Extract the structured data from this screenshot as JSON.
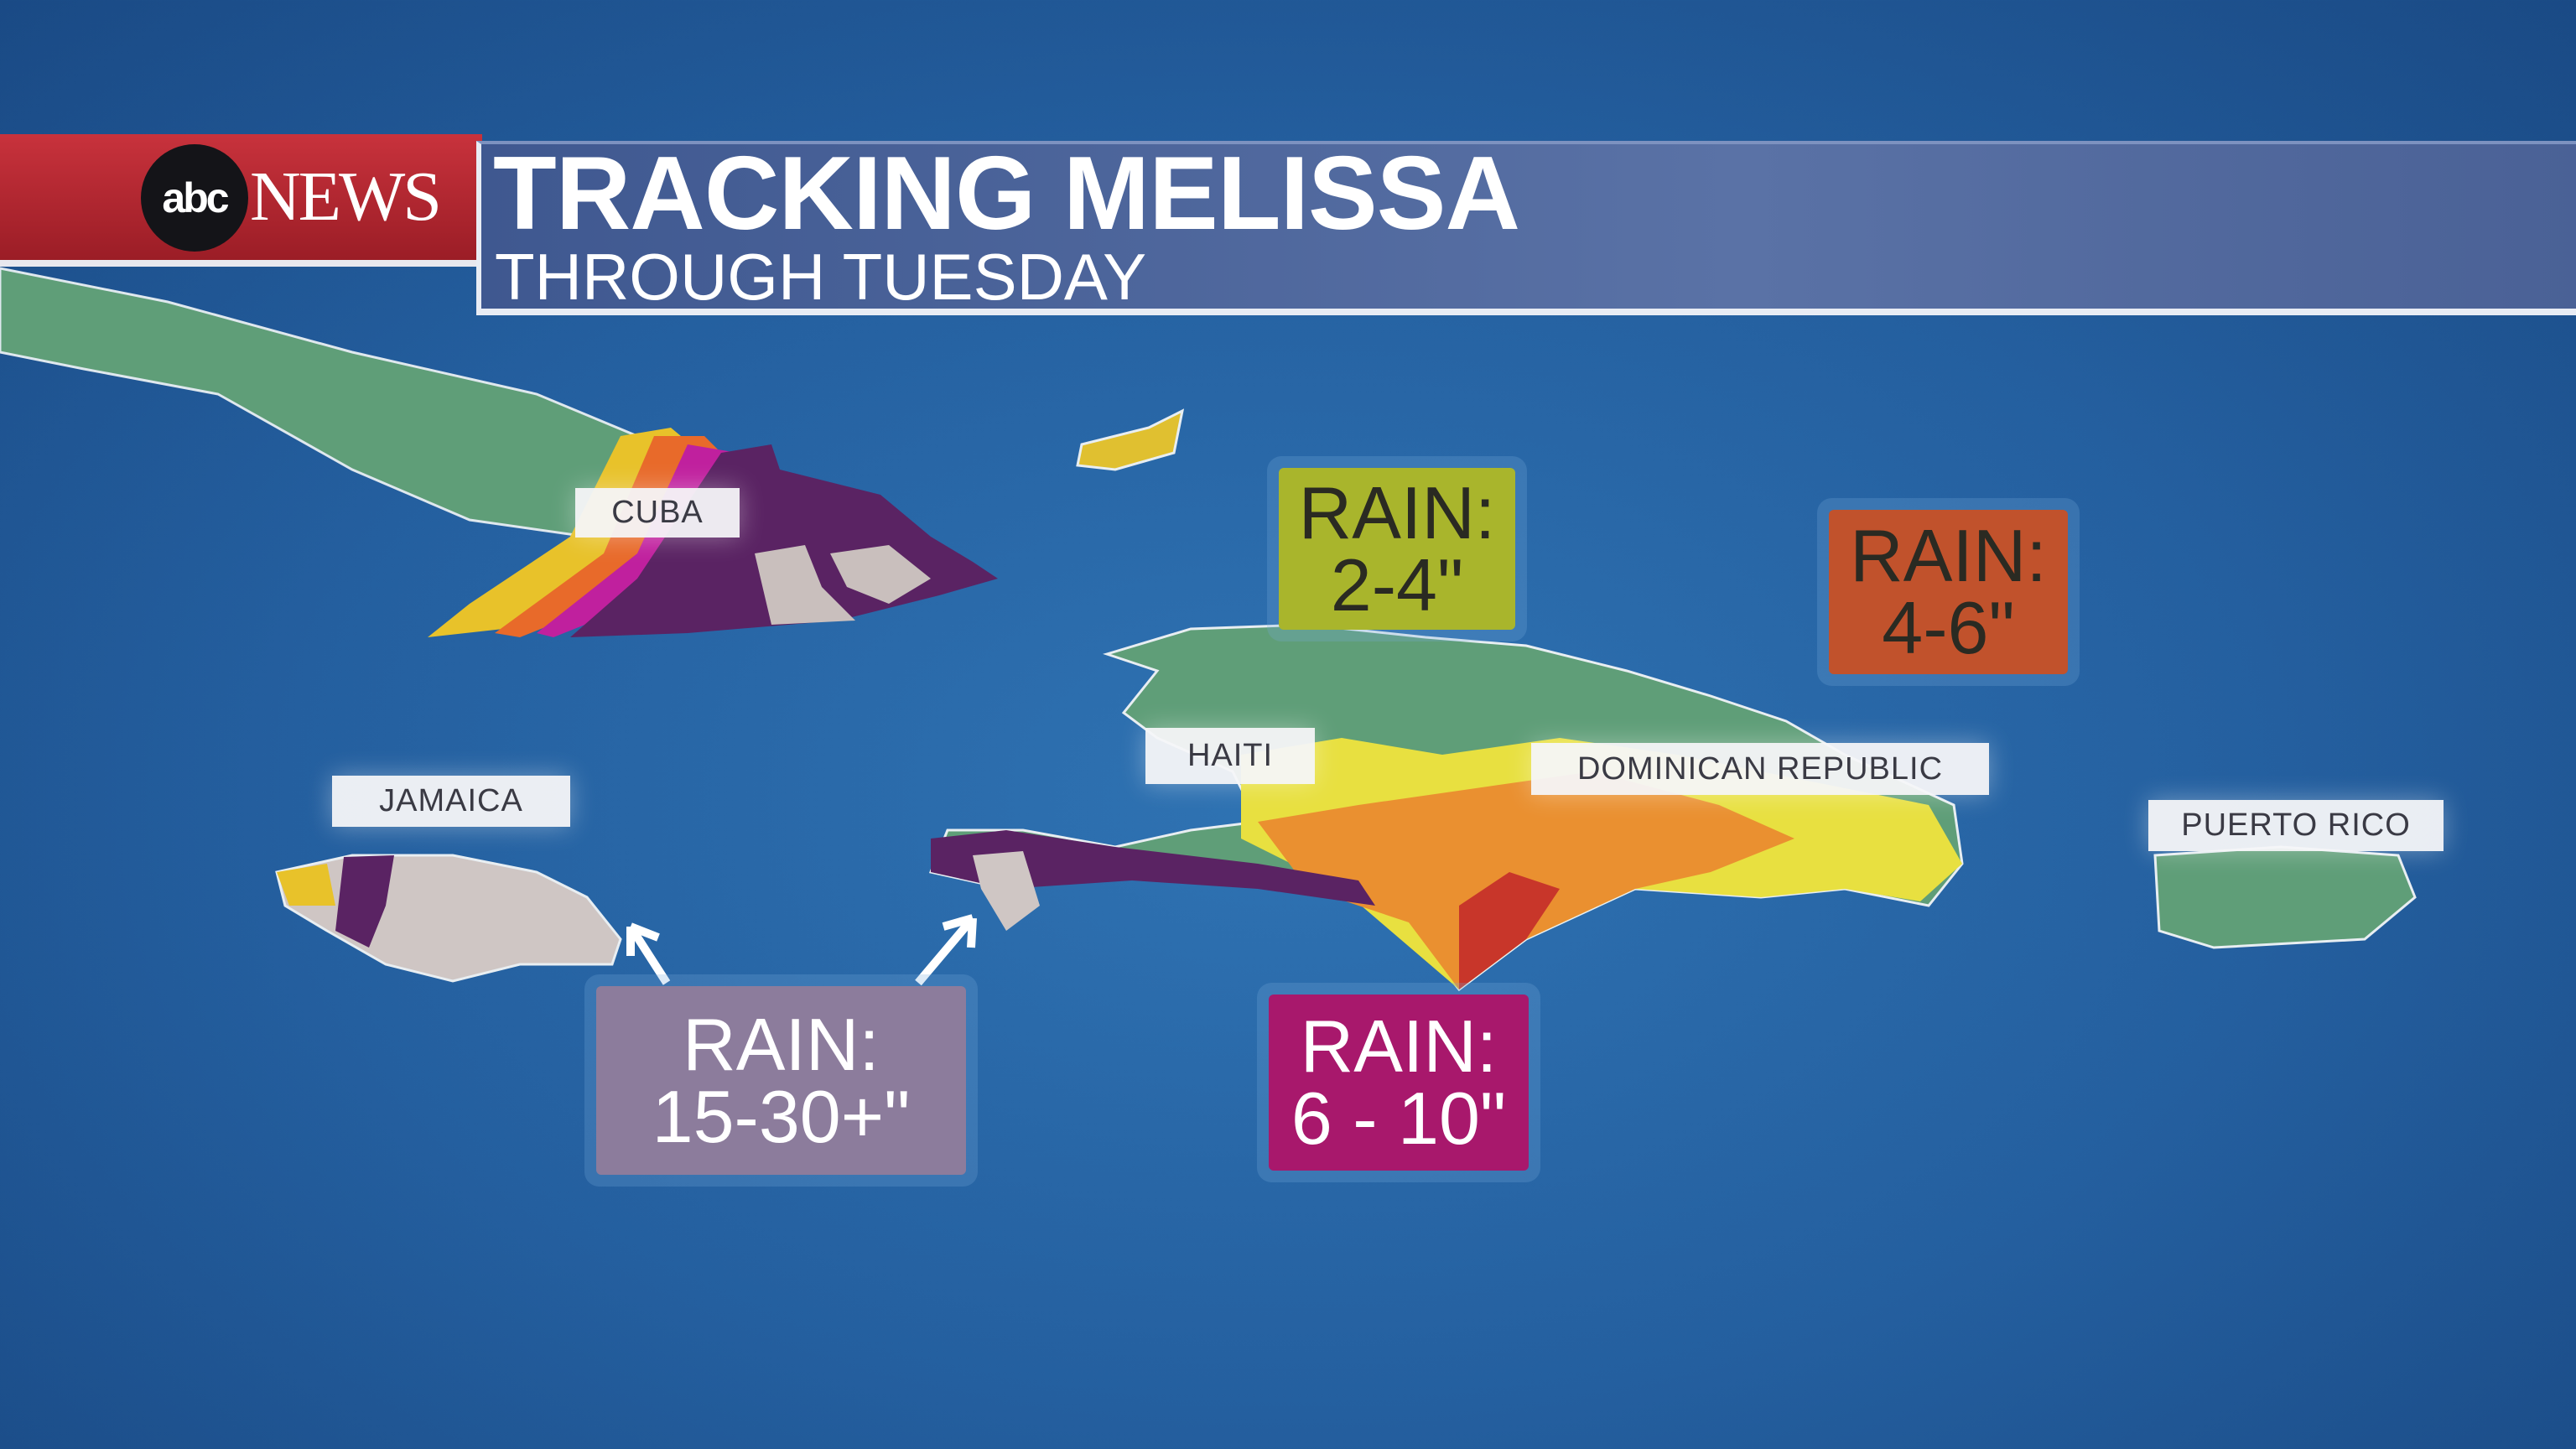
{
  "header": {
    "logo": "abc NEWS",
    "logo_abc": "abc",
    "logo_news": "NEWS",
    "title": "TRACKING MELISSA",
    "subtitle": "THROUGH TUESDAY"
  },
  "places": {
    "cuba": "CUBA",
    "jamaica": "JAMAICA",
    "haiti": "HAITI",
    "dominican_republic": "DOMINICAN REPUBLIC",
    "puerto_rico": "PUERTO RICO"
  },
  "rain_boxes": [
    {
      "label": "RAIN:",
      "amount": "2-4\"",
      "color": "#a9b52c"
    },
    {
      "label": "RAIN:",
      "amount": "4-6\"",
      "color": "#c1522c"
    },
    {
      "label": "RAIN:",
      "amount": "15-30+\"",
      "color": "#8c7c9c"
    },
    {
      "label": "RAIN:",
      "amount": "6 - 10\"",
      "color": "#a8186c"
    }
  ],
  "colors": {
    "ocean": "#2a68aa",
    "land": "#5f9e78",
    "brand_red": "#b4262f",
    "banner_blue": "#4d6499"
  }
}
